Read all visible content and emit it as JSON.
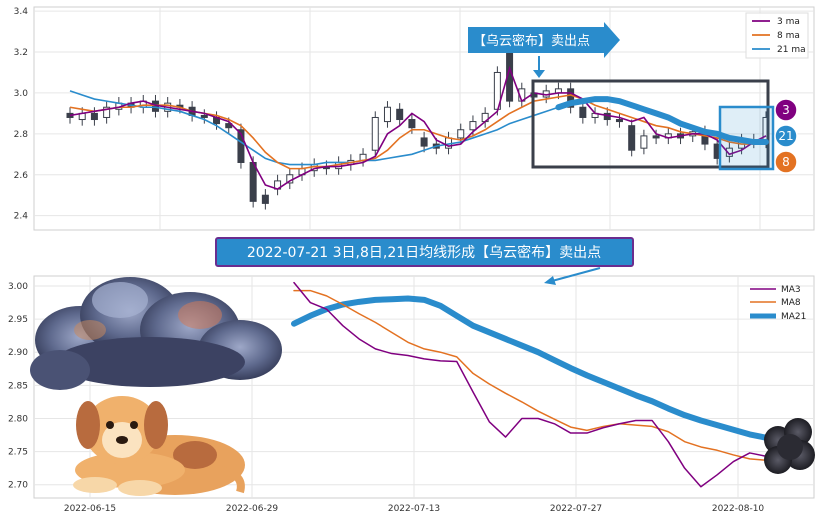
{
  "chart_data": [
    {
      "type": "candlestick",
      "title": "",
      "ylim": [
        2.33,
        3.42
      ],
      "yticks": [
        "2.4",
        "2.6",
        "2.8",
        "3.0",
        "3.2",
        "3.4"
      ],
      "grid": true,
      "legend_position": "top-right",
      "legend": [
        {
          "name": "3 ma",
          "color": "#800080"
        },
        {
          "name": "8 ma",
          "color": "#e37222"
        },
        {
          "name": "21 ma",
          "color": "#2a8ccc"
        }
      ],
      "callout": "【乌云密布】卖出点",
      "badges": [
        "3",
        "21",
        "8"
      ],
      "ma3": [
        2.89,
        2.9,
        2.91,
        2.92,
        2.93,
        2.95,
        2.96,
        2.94,
        2.93,
        2.92,
        2.91,
        2.9,
        2.88,
        2.86,
        2.8,
        2.66,
        2.55,
        2.53,
        2.57,
        2.6,
        2.63,
        2.64,
        2.64,
        2.65,
        2.66,
        2.69,
        2.8,
        2.84,
        2.9,
        2.86,
        2.77,
        2.74,
        2.75,
        2.81,
        2.86,
        2.91,
        3.12,
        2.96,
        3.0,
        2.99,
        3.0,
        3.0,
        2.97,
        2.9,
        2.89,
        2.88,
        2.86,
        2.88,
        2.8,
        2.78,
        2.79,
        2.8,
        2.8,
        2.77,
        2.7,
        2.72,
        2.76,
        2.79
      ],
      "ma8": [
        2.93,
        2.92,
        2.91,
        2.92,
        2.93,
        2.93,
        2.94,
        2.94,
        2.94,
        2.93,
        2.91,
        2.9,
        2.89,
        2.87,
        2.84,
        2.78,
        2.71,
        2.66,
        2.63,
        2.63,
        2.64,
        2.64,
        2.65,
        2.66,
        2.67,
        2.68,
        2.72,
        2.78,
        2.82,
        2.82,
        2.8,
        2.78,
        2.77,
        2.79,
        2.82,
        2.86,
        2.9,
        2.93,
        2.96,
        2.97,
        2.98,
        2.99,
        2.97,
        2.94,
        2.92,
        2.9,
        2.88,
        2.86,
        2.84,
        2.83,
        2.81,
        2.8,
        2.79,
        2.78,
        2.76,
        2.75,
        2.75,
        2.76
      ],
      "ma21": [
        3.01,
        2.99,
        2.97,
        2.96,
        2.95,
        2.94,
        2.93,
        2.93,
        2.92,
        2.91,
        2.89,
        2.87,
        2.84,
        2.8,
        2.76,
        2.72,
        2.68,
        2.66,
        2.65,
        2.65,
        2.65,
        2.66,
        2.66,
        2.66,
        2.67,
        2.67,
        2.68,
        2.69,
        2.7,
        2.72,
        2.74,
        2.75,
        2.76,
        2.78,
        2.8,
        2.82,
        2.85,
        2.87,
        2.89,
        2.91,
        2.93,
        2.95,
        2.96,
        2.97,
        2.97,
        2.96,
        2.94,
        2.92,
        2.9,
        2.88,
        2.85,
        2.83,
        2.81,
        2.8,
        2.78,
        2.77,
        2.76,
        2.76
      ],
      "candles": [
        [
          2.9,
          2.88
        ],
        [
          2.87,
          2.9
        ],
        [
          2.9,
          2.87
        ],
        [
          2.88,
          2.93
        ],
        [
          2.92,
          2.95
        ],
        [
          2.95,
          2.93
        ],
        [
          2.93,
          2.96
        ],
        [
          2.96,
          2.91
        ],
        [
          2.91,
          2.95
        ],
        [
          2.94,
          2.93
        ],
        [
          2.93,
          2.89
        ],
        [
          2.89,
          2.88
        ],
        [
          2.88,
          2.85
        ],
        [
          2.85,
          2.83
        ],
        [
          2.82,
          2.66
        ],
        [
          2.66,
          2.47
        ],
        [
          2.5,
          2.46
        ],
        [
          2.53,
          2.57
        ],
        [
          2.56,
          2.6
        ],
        [
          2.6,
          2.63
        ],
        [
          2.62,
          2.65
        ],
        [
          2.64,
          2.63
        ],
        [
          2.63,
          2.66
        ],
        [
          2.65,
          2.67
        ],
        [
          2.67,
          2.7
        ],
        [
          2.72,
          2.88
        ],
        [
          2.86,
          2.93
        ],
        [
          2.92,
          2.87
        ],
        [
          2.87,
          2.83
        ],
        [
          2.78,
          2.74
        ],
        [
          2.75,
          2.73
        ],
        [
          2.73,
          2.78
        ],
        [
          2.78,
          2.82
        ],
        [
          2.82,
          2.86
        ],
        [
          2.86,
          2.9
        ],
        [
          2.92,
          3.1
        ],
        [
          3.2,
          2.96
        ],
        [
          2.96,
          3.02
        ],
        [
          3.0,
          2.98
        ],
        [
          2.98,
          3.01
        ],
        [
          3.0,
          3.02
        ],
        [
          3.02,
          2.93
        ],
        [
          2.93,
          2.88
        ],
        [
          2.88,
          2.9
        ],
        [
          2.9,
          2.87
        ],
        [
          2.87,
          2.86
        ],
        [
          2.84,
          2.72
        ],
        [
          2.73,
          2.79
        ],
        [
          2.79,
          2.78
        ],
        [
          2.78,
          2.8
        ],
        [
          2.8,
          2.78
        ],
        [
          2.79,
          2.81
        ],
        [
          2.81,
          2.75
        ],
        [
          2.75,
          2.68
        ],
        [
          2.69,
          2.73
        ],
        [
          2.73,
          2.77
        ],
        [
          2.77,
          2.76
        ],
        [
          2.76,
          2.88
        ]
      ]
    },
    {
      "type": "line",
      "title": "2022-07-21 3日,8日,21日均线形成【乌云密布】卖出点",
      "ylim": [
        2.68,
        3.015
      ],
      "yticks": [
        "2.70",
        "2.75",
        "2.80",
        "2.85",
        "2.90",
        "2.95",
        "3.00"
      ],
      "xlabels": [
        "2022-06-15",
        "2022-06-29",
        "2022-07-13",
        "2022-07-27",
        "2022-08-10"
      ],
      "grid": true,
      "legend_position": "top-right",
      "series": [
        {
          "name": "MA3",
          "color": "#800080",
          "values": [
            3.005,
            2.975,
            2.965,
            2.94,
            2.92,
            2.905,
            2.898,
            2.895,
            2.89,
            2.887,
            2.886,
            2.84,
            2.795,
            2.772,
            2.8,
            2.8,
            2.792,
            2.778,
            2.778,
            2.786,
            2.792,
            2.797,
            2.797,
            2.765,
            2.725,
            2.697,
            2.715,
            2.735,
            2.748,
            2.743
          ]
        },
        {
          "name": "MA8",
          "color": "#e37222",
          "values": [
            2.993,
            2.993,
            2.985,
            2.972,
            2.958,
            2.945,
            2.93,
            2.915,
            2.905,
            2.9,
            2.893,
            2.868,
            2.852,
            2.838,
            2.825,
            2.811,
            2.799,
            2.787,
            2.782,
            2.788,
            2.792,
            2.79,
            2.788,
            2.78,
            2.765,
            2.757,
            2.752,
            2.745,
            2.739,
            2.737
          ]
        },
        {
          "name": "MA21",
          "color": "#2a8ccc",
          "values": [
            2.943,
            2.955,
            2.965,
            2.972,
            2.976,
            2.979,
            2.98,
            2.981,
            2.979,
            2.97,
            2.955,
            2.94,
            2.93,
            2.92,
            2.91,
            2.9,
            2.888,
            2.876,
            2.865,
            2.855,
            2.845,
            2.835,
            2.826,
            2.815,
            2.805,
            2.797,
            2.79,
            2.783,
            2.776,
            2.771
          ]
        }
      ]
    }
  ]
}
